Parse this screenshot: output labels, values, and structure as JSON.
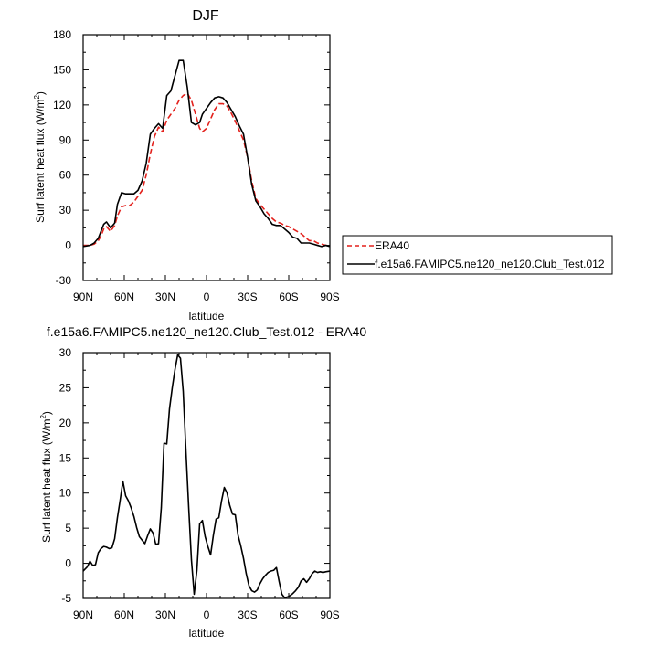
{
  "chart_data": [
    {
      "type": "line",
      "title": "DJF",
      "xlabel": "latitude",
      "ylabel": "Surf latent heat flux (W/m²)",
      "ylabel_main": "Surf latent heat flux (W/m",
      "ylabel_sup": "2",
      "ylabel_tail": ")",
      "xlim": [
        -90,
        90
      ],
      "ylim": [
        -30,
        180
      ],
      "xticks": [
        -90,
        -60,
        -30,
        0,
        30,
        60,
        90
      ],
      "xtick_labels": [
        "90N",
        "60N",
        "30N",
        "0",
        "30S",
        "60S",
        "90S"
      ],
      "yticks": [
        -30,
        0,
        30,
        60,
        90,
        120,
        150,
        180
      ],
      "ytick_labels": [
        "-30",
        "0",
        "30",
        "60",
        "90",
        "120",
        "150",
        "180"
      ],
      "legend_position": "right",
      "series": [
        {
          "name": "ERA40",
          "color": "#e3211c",
          "dash": true,
          "x": [
            -90,
            -85,
            -82,
            -79,
            -77,
            -75,
            -73,
            -70,
            -67,
            -65,
            -62,
            -59,
            -56,
            -53,
            -50,
            -47,
            -44,
            -41,
            -38,
            -35,
            -32,
            -29,
            -26,
            -23,
            -20,
            -17,
            -14,
            -11,
            -8,
            -5,
            -3,
            0,
            3,
            6,
            9,
            12,
            15,
            18,
            21,
            24,
            27,
            30,
            33,
            36,
            39,
            42,
            45,
            48,
            51,
            54,
            57,
            60,
            63,
            66,
            69,
            72,
            75,
            78,
            81,
            84,
            87,
            90
          ],
          "y": [
            0,
            0,
            1,
            4,
            8,
            14,
            16,
            12,
            17,
            25,
            33,
            34,
            34,
            37,
            42,
            47,
            60,
            78,
            93,
            101,
            97,
            107,
            112,
            117,
            124,
            128,
            130,
            124,
            112,
            100,
            97,
            100,
            108,
            116,
            121,
            121,
            119,
            113,
            106,
            98,
            90,
            75,
            55,
            40,
            35,
            31,
            27,
            23,
            20,
            19,
            17,
            16,
            14,
            12,
            10,
            7,
            4,
            4,
            2,
            1,
            0,
            0
          ]
        },
        {
          "name": "f.e15a6.FAMIPC5.ne120_ne120.Club_Test.012",
          "color": "#000000",
          "dash": false,
          "x": [
            -90,
            -85,
            -82,
            -79,
            -77,
            -75,
            -73,
            -70,
            -67,
            -65,
            -62,
            -59,
            -56,
            -53,
            -50,
            -47,
            -44,
            -41,
            -38,
            -35,
            -32,
            -29,
            -26,
            -23,
            -20,
            -17,
            -14,
            -11,
            -8,
            -5,
            -3,
            0,
            3,
            6,
            9,
            12,
            15,
            18,
            21,
            24,
            27,
            30,
            33,
            36,
            39,
            42,
            45,
            48,
            51,
            54,
            57,
            60,
            63,
            66,
            69,
            72,
            75,
            78,
            81,
            84,
            87,
            90
          ],
          "y": [
            -1,
            0,
            2,
            6,
            12,
            18,
            20,
            15,
            19,
            35,
            45,
            44,
            44,
            44,
            47,
            55,
            70,
            95,
            100,
            104,
            100,
            128,
            132,
            145,
            158,
            158,
            135,
            105,
            103,
            105,
            112,
            117,
            122,
            126,
            127,
            126,
            122,
            116,
            110,
            102,
            95,
            75,
            52,
            38,
            33,
            27,
            23,
            18,
            17,
            17,
            14,
            11,
            7,
            6,
            2,
            2,
            2,
            1,
            0,
            -1,
            0,
            -1
          ]
        }
      ]
    },
    {
      "type": "line",
      "title": "f.e15a6.FAMIPC5.ne120_ne120.Club_Test.012 - ERA40",
      "xlabel": "latitude",
      "ylabel": "Surf latent heat flux (W/m²)",
      "ylabel_main": "Surf latent heat flux (W/m",
      "ylabel_sup": "2",
      "ylabel_tail": ")",
      "xlim": [
        -90,
        90
      ],
      "ylim": [
        -5,
        30
      ],
      "xticks": [
        -90,
        -60,
        -30,
        0,
        30,
        60,
        90
      ],
      "xtick_labels": [
        "90N",
        "60N",
        "30N",
        "0",
        "30S",
        "60S",
        "90S"
      ],
      "yticks": [
        -5,
        0,
        5,
        10,
        15,
        20,
        25,
        30
      ],
      "ytick_labels": [
        "-5",
        "0",
        "5",
        "10",
        "15",
        "20",
        "25",
        "30"
      ],
      "series": [
        {
          "color": "#000000",
          "dash": false,
          "x": [
            -90,
            -87,
            -85,
            -83,
            -81,
            -79,
            -77,
            -75,
            -73,
            -71,
            -69,
            -67,
            -65,
            -63,
            -61,
            -59,
            -57,
            -55,
            -53,
            -51,
            -49,
            -47,
            -45,
            -43,
            -41,
            -39,
            -37,
            -35,
            -33,
            -31,
            -29,
            -27,
            -25,
            -23,
            -21,
            -19,
            -17,
            -15,
            -13,
            -11,
            -9,
            -7,
            -5,
            -3,
            -1,
            1,
            3,
            5,
            7,
            9,
            11,
            13,
            15,
            17,
            19,
            21,
            23,
            25,
            27,
            29,
            31,
            33,
            35,
            37,
            39,
            41,
            43,
            45,
            47,
            49,
            51,
            53,
            55,
            57,
            59,
            61,
            63,
            65,
            67,
            69,
            71,
            73,
            75,
            77,
            79,
            81,
            83,
            85,
            87,
            90
          ],
          "y": [
            -1.1,
            -0.5,
            0.3,
            -0.3,
            -0.2,
            1.5,
            2.1,
            2.4,
            2.3,
            2.1,
            2.2,
            3.5,
            6.5,
            9.0,
            11.7,
            9.6,
            8.9,
            7.9,
            6.7,
            5.1,
            3.8,
            3.3,
            2.8,
            3.9,
            4.9,
            4.3,
            2.7,
            2.8,
            7.9,
            17.1,
            17.0,
            22.0,
            25.0,
            27.6,
            29.7,
            29.2,
            24.5,
            16.0,
            8.0,
            0.5,
            -4.4,
            -1.0,
            5.6,
            6.1,
            3.8,
            2.4,
            1.2,
            4.0,
            6.3,
            6.5,
            8.9,
            10.8,
            10.0,
            8.2,
            7.0,
            6.9,
            4.0,
            2.5,
            0.7,
            -1.5,
            -3.2,
            -3.9,
            -4.1,
            -3.8,
            -2.9,
            -2.2,
            -1.7,
            -1.3,
            -1.1,
            -1.0,
            -0.6,
            -2.6,
            -4.4,
            -4.9,
            -4.8,
            -4.6,
            -4.3,
            -3.9,
            -3.4,
            -2.5,
            -2.2,
            -2.7,
            -2.2,
            -1.5,
            -1.1,
            -1.3,
            -1.2,
            -1.3,
            -1.2,
            -1.1
          ]
        }
      ]
    }
  ]
}
